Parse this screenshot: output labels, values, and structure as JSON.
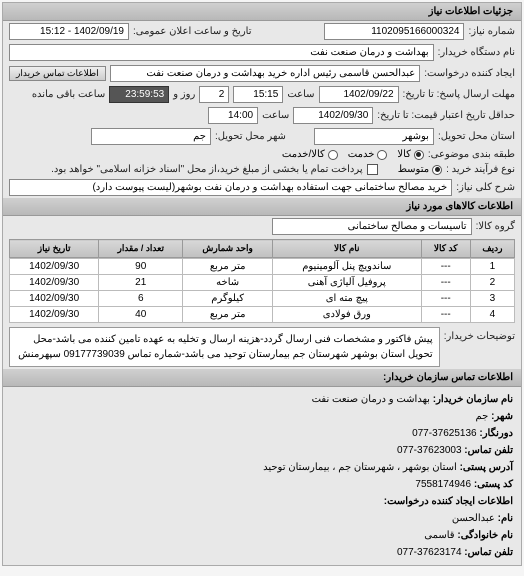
{
  "header": {
    "title": "جزئیات اطلاعات نیاز"
  },
  "form": {
    "request_no_label": "شماره نیاز:",
    "request_no": "1102095166000324",
    "announce_date_label": "تاریخ و ساعت اعلان عمومی:",
    "announce_date": "1402/09/19 - 15:12",
    "buyer_org_label": "نام دستگاه خریدار:",
    "buyer_org": "بهداشت و درمان صنعت نفت",
    "requester_label": "ایجاد کننده درخواست:",
    "requester": "عبدالحسن قاسمی رئیس اداره خرید  بهداشت و درمان صنعت نفت",
    "buyer_contact_btn": "اطلاعات تماس خریدار",
    "deadline_send_label": "مهلت ارسال پاسخ: تا تاریخ:",
    "deadline_send_date": "1402/09/22",
    "time_label": "ساعت",
    "deadline_send_time": "15:15",
    "days_label": "روز و",
    "days_left": "2",
    "remain_time": "23:59:53",
    "remain_label": "ساعت باقی مانده",
    "validity_label": "حداقل تاریخ اعتبار قیمت: تا تاریخ:",
    "validity_date": "1402/09/30",
    "validity_time": "14:00",
    "delivery_province_label": "استان محل تحویل:",
    "delivery_province": "بوشهر",
    "delivery_city_label": "شهر محل تحویل:",
    "delivery_city": "جم",
    "category_label": "طبقه بندی موضوعی:",
    "cat_goods": "کالا",
    "cat_service": "خدمت",
    "cat_both": "کالا/خدمت",
    "purchase_type_label": "نوع فرآیند خرید :",
    "pt_medium": "متوسط",
    "pt_note": "پرداخت تمام یا بخشی از مبلغ خرید،از محل \"اسناد خزانه اسلامی\" خواهد بود.",
    "title_label": "شرح کلی نیاز:",
    "title_text": "خرید مصالح ساختمانی جهت استفاده بهداشت و درمان نفت بوشهر(لیست پیوست دارد)"
  },
  "items_section": {
    "header": "اطلاعات کالاهای مورد نیاز",
    "group_label": "گروه کالا:",
    "group_value": "تاسیسات و مصالح ساختمانی",
    "columns": [
      "ردیف",
      "کد کالا",
      "نام کالا",
      "واحد شمارش",
      "تعداد / مقدار",
      "تاریخ نیاز"
    ],
    "rows": [
      [
        "1",
        "---",
        "ساندویچ پنل آلومینیوم",
        "متر مربع",
        "90",
        "1402/09/30"
      ],
      [
        "2",
        "---",
        "پروفیل آلیاژی آهنی",
        "شاخه",
        "21",
        "1402/09/30"
      ],
      [
        "3",
        "---",
        "پیچ مته ای",
        "کیلوگرم",
        "6",
        "1402/09/30"
      ],
      [
        "4",
        "---",
        "ورق فولادی",
        "متر مربع",
        "40",
        "1402/09/30"
      ]
    ]
  },
  "description": {
    "label": "توضیحات خریدار:",
    "text": "پیش فاکتور و مشخصات فنی ارسال گردد-هزینه ارسال و تخلیه به عهده تامین کننده می باشد-محل تحویل استان بوشهر شهرستان جم بیمارستان توحید می باشد-شماره تماس 09177739039 سپهرمنش"
  },
  "contact": {
    "header": "اطلاعات تماس سازمان خریدار:",
    "org_label": "نام سازمان خریدار:",
    "org": "بهداشت و درمان صنعت نفت",
    "city_label": "شهر:",
    "city": "جم",
    "fax_label": "دورنگار:",
    "fax": "37625136-077",
    "phone_label": "تلفن تماس:",
    "phone": "37623003-077",
    "address_label": "آدرس پستی:",
    "address": "استان بوشهر ، شهرستان جم ، بیمارستان توحید",
    "postal_label": "کد پستی:",
    "postal": "7558174946",
    "req_header": "اطلاعات ایجاد کننده درخواست:",
    "name_label": "نام:",
    "name": "عبدالحسن",
    "lname_label": "نام خانوادگی:",
    "lname": "قاسمی",
    "rphone_label": "تلفن تماس:",
    "rphone": "37623174-077"
  }
}
